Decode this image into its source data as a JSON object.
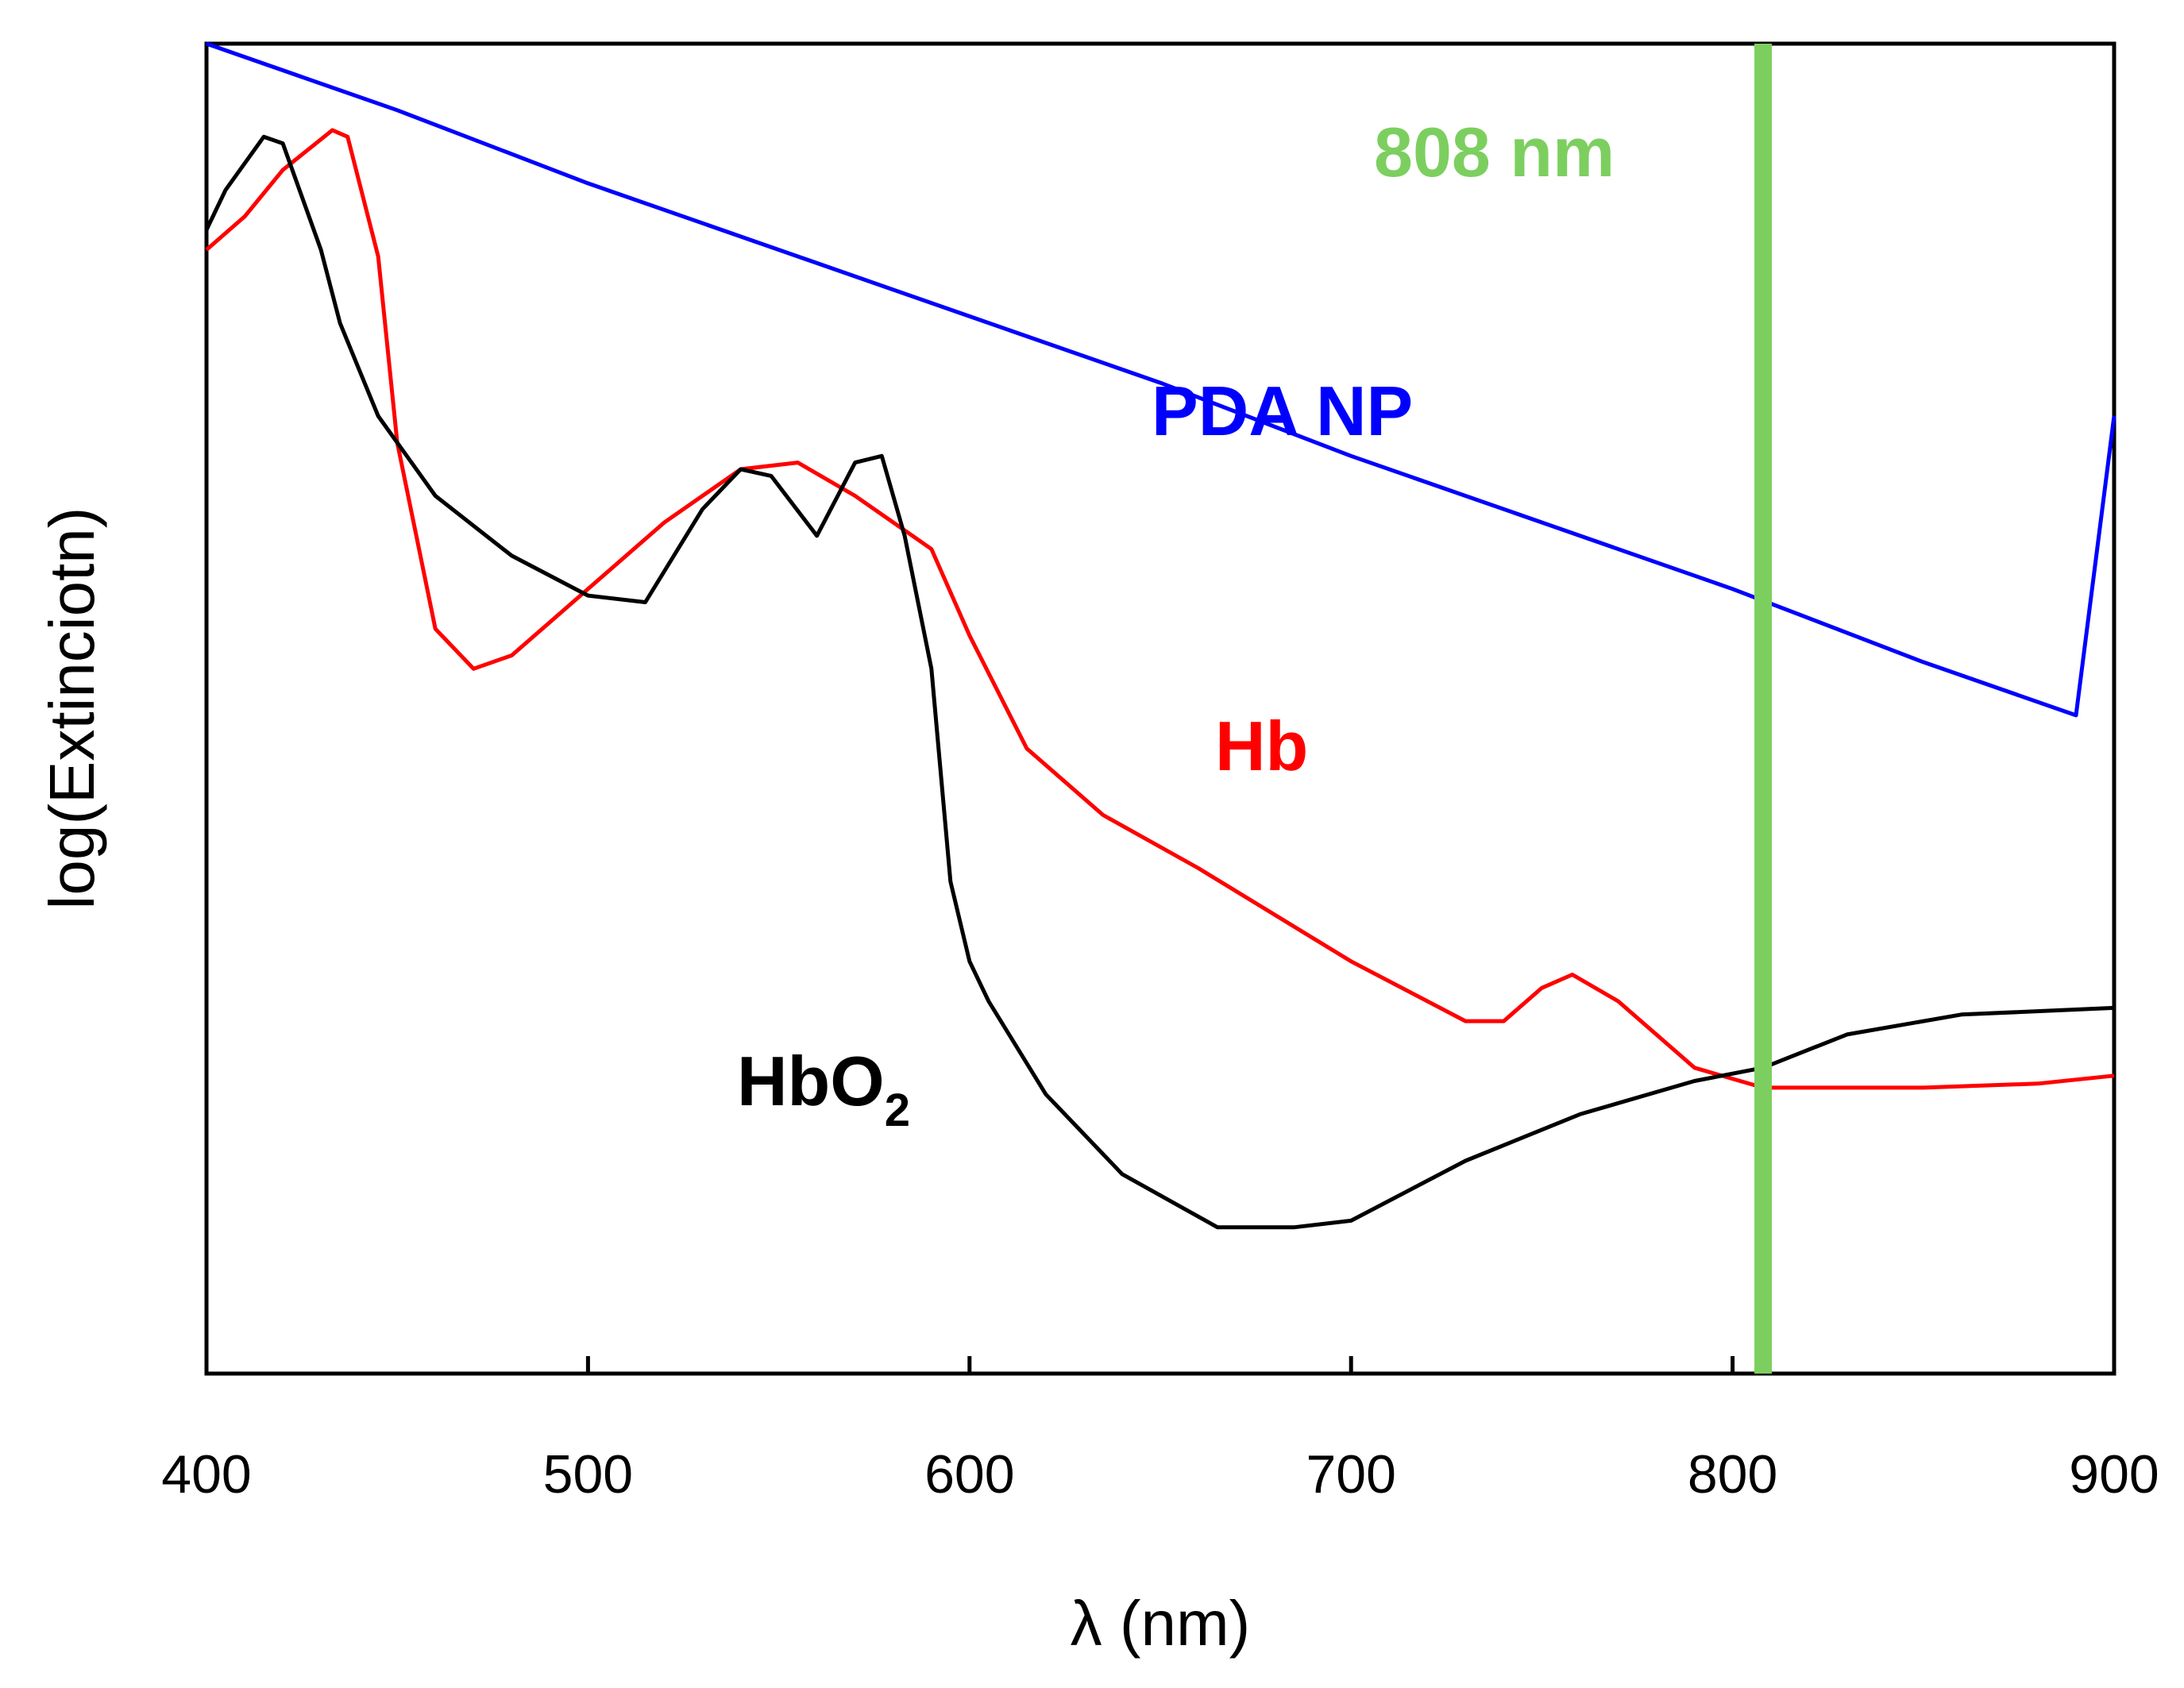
{
  "chart_data": {
    "type": "line",
    "xlabel": "λ (nm)",
    "ylabel": "log(Extinciotn)",
    "xlim": [
      400,
      900
    ],
    "ylim": [
      0,
      100
    ],
    "x_ticks": [
      400,
      500,
      600,
      700,
      800,
      900
    ],
    "x_tick_labels": [
      "400",
      "500",
      "600",
      "700",
      "800",
      "900"
    ],
    "y_ticks_shown": false,
    "grid": false,
    "annotations": [
      {
        "text": "808 nm",
        "color": "#7ccf5f",
        "x": 808
      }
    ],
    "series": [
      {
        "name": "PDA NP",
        "color": "#0000ff",
        "x": [
          400,
          450,
          500,
          550,
          600,
          650,
          700,
          750,
          800,
          850,
          890,
          900
        ],
        "y": [
          100,
          95,
          89.5,
          84.5,
          79.5,
          74.5,
          69,
          64,
          59,
          53.5,
          49.5,
          72
        ]
      },
      {
        "name": "Hb",
        "color": "#ff0000",
        "x": [
          400,
          410,
          420,
          433,
          437,
          445,
          450,
          455,
          460,
          470,
          480,
          490,
          500,
          520,
          540,
          555,
          570,
          590,
          600,
          615,
          635,
          660,
          700,
          730,
          740,
          750,
          758,
          770,
          790,
          808,
          820,
          850,
          880,
          900
        ],
        "y": [
          84.5,
          87,
          90.5,
          93.5,
          93,
          84,
          70,
          63,
          56,
          53,
          54,
          56.5,
          59,
          64,
          68,
          68.5,
          66,
          62,
          55.5,
          47,
          42,
          38,
          31,
          26.5,
          26.5,
          29,
          30,
          28,
          23,
          21.5,
          21.5,
          21.5,
          21.8,
          22.4
        ]
      },
      {
        "name": "HbO",
        "label_subscript": "2",
        "color": "#000000",
        "x": [
          400,
          405,
          415,
          420,
          430,
          435,
          445,
          460,
          480,
          500,
          515,
          530,
          540,
          548,
          560,
          570,
          577,
          583,
          590,
          595,
          600,
          605,
          620,
          640,
          665,
          685,
          700,
          730,
          760,
          790,
          808,
          830,
          860,
          900
        ],
        "y": [
          86,
          89,
          93,
          92.5,
          84.5,
          79,
          72,
          66,
          61.5,
          58.5,
          58,
          65,
          68,
          67.5,
          63,
          68.5,
          69,
          63,
          53,
          37,
          31,
          28,
          21,
          15,
          11,
          11,
          11.5,
          16,
          19.5,
          22,
          23,
          25.5,
          27,
          27.5
        ]
      }
    ]
  }
}
